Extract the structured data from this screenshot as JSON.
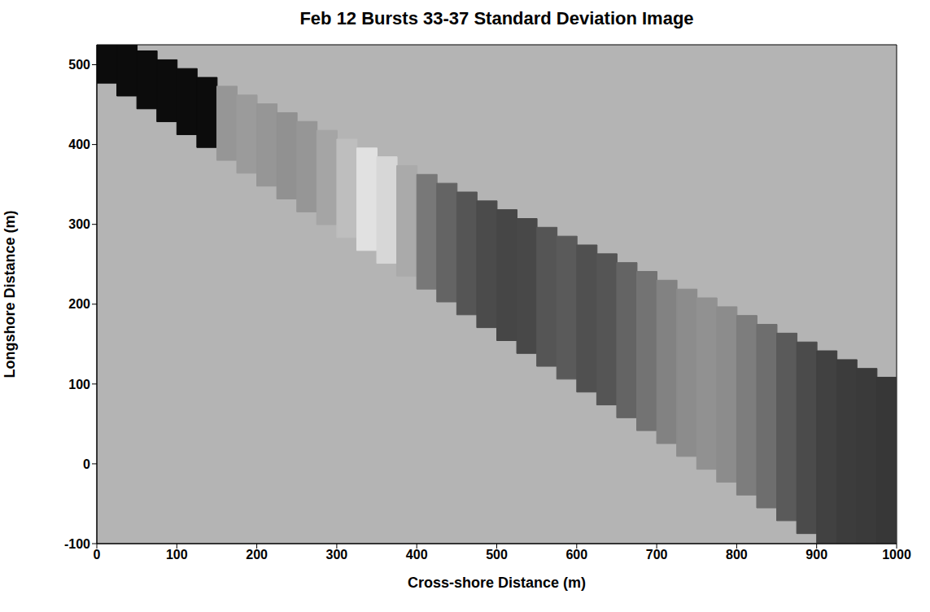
{
  "chart_data": {
    "type": "image",
    "title": "Feb 12 Bursts 33-37 Standard Deviation Image",
    "x_label": "Cross-shore Distance (m)",
    "y_label": "Longshore Distance (m)",
    "xlim": [
      0,
      1000
    ],
    "ylim": [
      -100,
      525
    ],
    "xticks": [
      0,
      100,
      200,
      300,
      400,
      500,
      600,
      700,
      800,
      900,
      1000
    ],
    "yticks": [
      -100,
      0,
      100,
      200,
      300,
      400,
      500
    ],
    "grid": false,
    "x": [
      12.5,
      37.5,
      62.5,
      87.5,
      112.5,
      137.5,
      162.5,
      187.5,
      212.5,
      237.5,
      262.5,
      287.5,
      312.5,
      337.5,
      362.5,
      387.5,
      412.5,
      437.5,
      462.5,
      487.5,
      512.5,
      537.5,
      562.5,
      587.5,
      612.5,
      637.5,
      662.5,
      687.5,
      712.5,
      737.5,
      762.5,
      787.5,
      812.5,
      837.5,
      862.5,
      887.5,
      912.5,
      937.5,
      962.5,
      987.5
    ],
    "y_low": [
      476.9,
      460.8,
      444.7,
      428.6,
      412.4,
      396.3,
      380.2,
      364.1,
      347.9,
      331.8,
      315.7,
      299.6,
      283.4,
      267.3,
      251.2,
      235.1,
      218.9,
      202.8,
      186.7,
      170.6,
      154.4,
      138.3,
      122.2,
      106.1,
      89.9,
      73.8,
      57.7,
      41.6,
      25.4,
      9.3,
      -6.8,
      -22.9,
      -39.1,
      -55.2,
      -71.3,
      -87.4,
      -103.6,
      -119.7,
      -135.8,
      -151.9
    ],
    "y_high": [
      539.4,
      528.3,
      517.3,
      506.2,
      495.2,
      484.1,
      473.1,
      462.0,
      451.0,
      439.9,
      428.9,
      417.8,
      406.8,
      395.7,
      384.7,
      373.6,
      362.6,
      351.5,
      340.5,
      329.4,
      318.4,
      307.3,
      296.3,
      285.2,
      274.2,
      263.1,
      252.1,
      241.0,
      230.0,
      218.9,
      207.9,
      196.8,
      185.8,
      174.7,
      163.7,
      152.6,
      141.6,
      130.5,
      119.5,
      108.4
    ],
    "values": [
      12,
      12,
      12,
      12,
      12,
      12,
      150,
      155,
      150,
      145,
      150,
      165,
      190,
      225,
      215,
      170,
      120,
      100,
      85,
      75,
      70,
      72,
      85,
      90,
      80,
      85,
      100,
      115,
      130,
      140,
      145,
      140,
      125,
      110,
      90,
      75,
      65,
      60,
      58,
      55
    ]
  }
}
